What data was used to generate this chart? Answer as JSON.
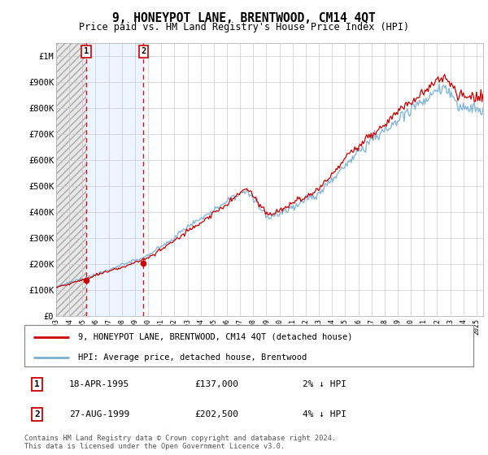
{
  "title": "9, HONEYPOT LANE, BRENTWOOD, CM14 4QT",
  "subtitle": "Price paid vs. HM Land Registry's House Price Index (HPI)",
  "hpi_color": "#7ab0d4",
  "price_color": "#cc0000",
  "vline_color": "#cc0000",
  "grid_color": "#cccccc",
  "ylim": [
    0,
    1050000
  ],
  "yticks": [
    0,
    100000,
    200000,
    300000,
    400000,
    500000,
    600000,
    700000,
    800000,
    900000,
    1000000
  ],
  "ytick_labels": [
    "£0",
    "£100K",
    "£200K",
    "£300K",
    "£400K",
    "£500K",
    "£600K",
    "£700K",
    "£800K",
    "£900K",
    "£1M"
  ],
  "sale1_date": 1995.29,
  "sale1_price": 137000,
  "sale2_date": 1999.65,
  "sale2_price": 202500,
  "legend_label_price": "9, HONEYPOT LANE, BRENTWOOD, CM14 4QT (detached house)",
  "legend_label_hpi": "HPI: Average price, detached house, Brentwood",
  "annotation1_date": "18-APR-1995",
  "annotation1_price": "£137,000",
  "annotation1_hpi": "2% ↓ HPI",
  "annotation2_date": "27-AUG-1999",
  "annotation2_price": "£202,500",
  "annotation2_hpi": "4% ↓ HPI",
  "footer": "Contains HM Land Registry data © Crown copyright and database right 2024.\nThis data is licensed under the Open Government Licence v3.0.",
  "xlim_start": 1993.0,
  "xlim_end": 2025.5
}
